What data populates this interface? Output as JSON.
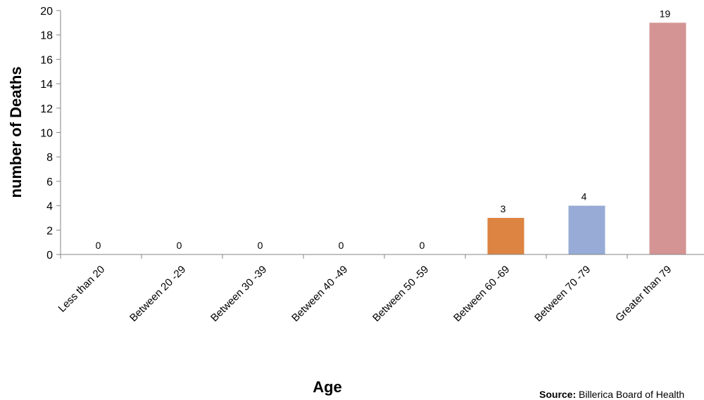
{
  "chart_data": {
    "type": "bar",
    "title": "",
    "xlabel": "Age",
    "ylabel": "number of Deaths",
    "ylim": [
      0,
      20
    ],
    "yticks": [
      0,
      2,
      4,
      6,
      8,
      10,
      12,
      14,
      16,
      18,
      20
    ],
    "categories": [
      "Less than 20",
      "Between 20 -29",
      "Between 30 -39",
      "Between 40 -49",
      "Between 50 -59",
      "Between 60 -69",
      "Between 70 -79",
      "Greater than 79"
    ],
    "values": [
      0,
      0,
      0,
      0,
      0,
      3,
      4,
      19
    ],
    "colors": [
      "#4f81bd",
      "#4f81bd",
      "#4f81bd",
      "#4f81bd",
      "#4f81bd",
      "#dd8442",
      "#97abd6",
      "#d39493"
    ],
    "grid": false,
    "legend": "none"
  },
  "source": {
    "label": "Source:",
    "text": "Billerica Board of Health"
  }
}
